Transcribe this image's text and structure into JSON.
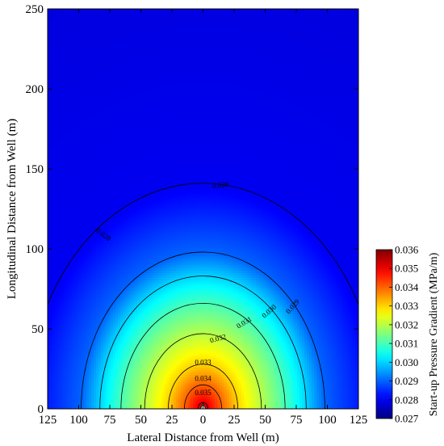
{
  "chart_data": {
    "type": "heatmap",
    "subtype": "filled contour map",
    "xlabel": "Lateral Distance from Well (m)",
    "ylabel": "Longitudinal Distance from Well (m)",
    "xlim": [
      -125,
      125
    ],
    "ylim": [
      0,
      250
    ],
    "x_ticks": [
      -125,
      -100,
      -75,
      -50,
      -25,
      0,
      25,
      50,
      75,
      100,
      125
    ],
    "x_tick_labels": [
      "125",
      "100",
      "75",
      "50",
      "25",
      "0",
      "25",
      "50",
      "75",
      "100",
      "125"
    ],
    "y_ticks": [
      0,
      50,
      100,
      150,
      200,
      250
    ],
    "y_tick_labels": [
      "0",
      "50",
      "100",
      "150",
      "200",
      "250"
    ],
    "well_location": [
      0,
      0
    ],
    "field_model": {
      "description": "Start-up pressure gradient decreasing radially from the well",
      "radius_of_level": [
        {
          "level": 0.036,
          "radius": 0
        },
        {
          "level": 0.035,
          "radius": 4
        },
        {
          "level": 0.034,
          "radius": 15
        },
        {
          "level": 0.033,
          "radius": 28
        },
        {
          "level": 0.032,
          "radius": 47
        },
        {
          "level": 0.031,
          "radius": 66
        },
        {
          "level": 0.03,
          "radius": 83
        },
        {
          "level": 0.029,
          "radius": 98
        },
        {
          "level": 0.028,
          "radius": 141
        },
        {
          "level": 0.027,
          "radius": 1000
        }
      ]
    },
    "contour_levels": [
      {
        "level": 0.035,
        "label": "0.035",
        "radius": 4
      },
      {
        "level": 0.034,
        "label": "0.034",
        "radius": 15
      },
      {
        "level": 0.033,
        "label": "0.033",
        "radius": 28
      },
      {
        "level": 0.032,
        "label": "0.032",
        "radius": 47
      },
      {
        "level": 0.031,
        "label": "0.031",
        "radius": 66
      },
      {
        "level": 0.03,
        "label": "0.030",
        "radius": 83
      },
      {
        "level": 0.029,
        "label": "0.029",
        "radius": 98
      },
      {
        "level": 0.028,
        "label": "0.028",
        "radius": 141
      }
    ],
    "contour_label_positions": [
      {
        "label": "0.035",
        "x": 0,
        "y": 10
      },
      {
        "label": "0.034",
        "x": 0,
        "y": 19
      },
      {
        "label": "0.033",
        "x": 0,
        "y": 29
      },
      {
        "label": "0.032",
        "x": 12,
        "y": 44
      },
      {
        "label": "0.031",
        "x": 33,
        "y": 54
      },
      {
        "label": "0.030",
        "x": 53,
        "y": 61
      },
      {
        "label": "0.029",
        "x": 72,
        "y": 64
      },
      {
        "label": "0.028",
        "x": -80,
        "y": 109
      },
      {
        "label": "0.028",
        "x": 14,
        "y": 140
      }
    ],
    "colorbar": {
      "title": "Start-up Pressure Gradient (MPa/m)",
      "min": 0.027,
      "max": 0.036,
      "ticks": [
        0.027,
        0.028,
        0.029,
        0.03,
        0.031,
        0.032,
        0.033,
        0.034,
        0.035,
        0.036
      ],
      "tick_labels": [
        "0.027",
        "0.028",
        "0.029",
        "0.030",
        "0.031",
        "0.032",
        "0.033",
        "0.034",
        "0.035",
        "0.036"
      ],
      "colormap": [
        "#00007f",
        "#0000ff",
        "#007fff",
        "#00ffff",
        "#7fff7f",
        "#ffff00",
        "#ff7f00",
        "#ff0000",
        "#7f0000"
      ]
    }
  }
}
